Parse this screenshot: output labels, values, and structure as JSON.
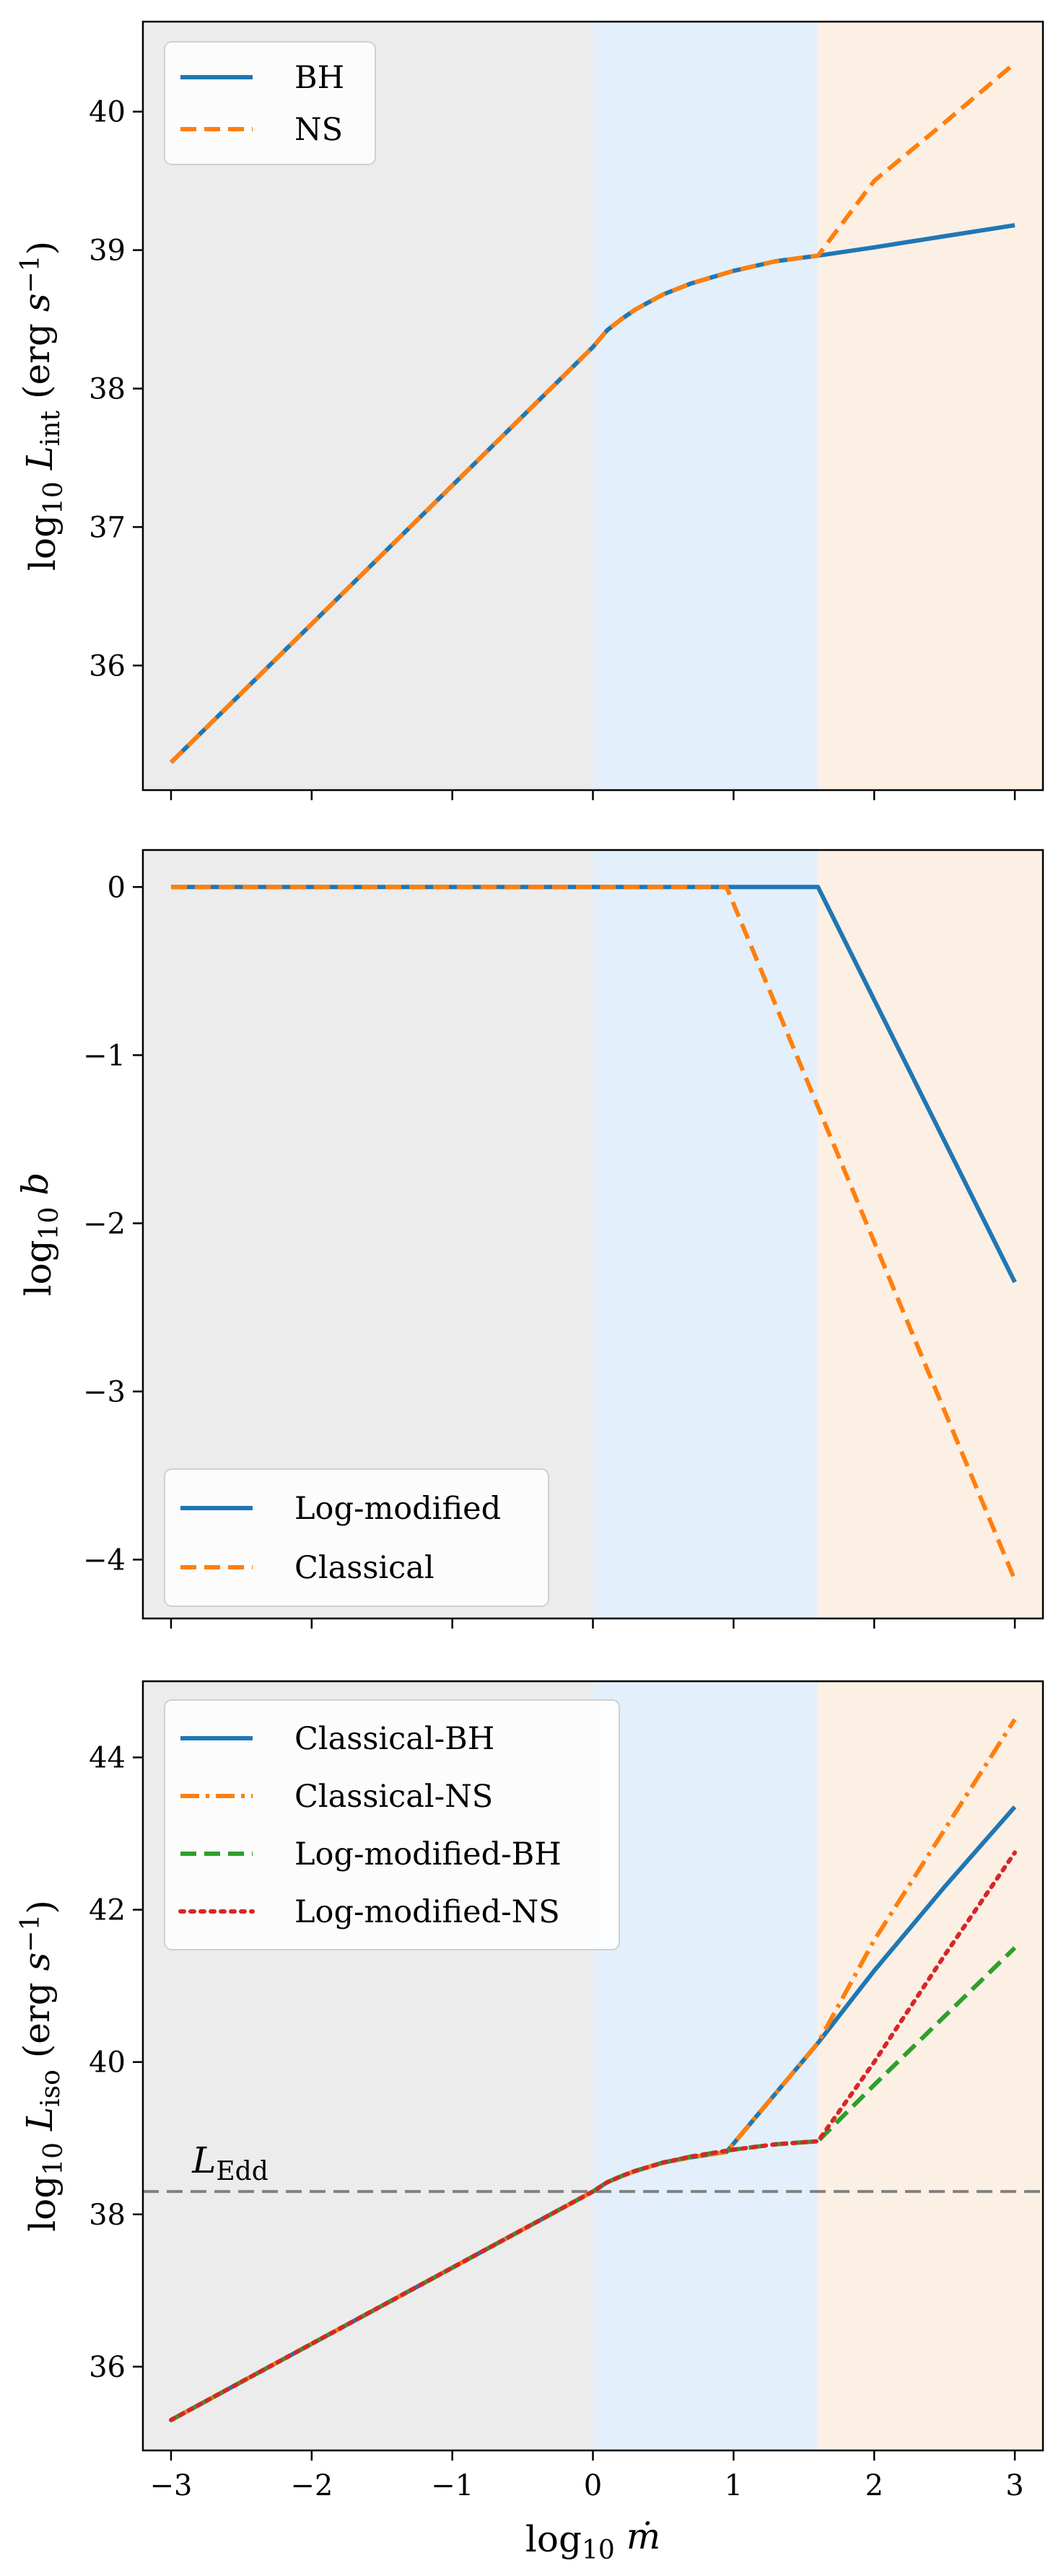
{
  "colors": {
    "blue": "#1f77b4",
    "orange": "#ff7f0e",
    "green": "#2ca02c",
    "red": "#d62728",
    "gray_band": "#ececec",
    "blue_band": "#e3effb",
    "orange_band": "#fcefe4",
    "edd_line": "#808080"
  },
  "chart_data": [
    {
      "type": "line",
      "ylabel": "log₁₀ L_int (erg s⁻¹)",
      "xlim": [
        -3.2,
        3.2
      ],
      "ylim": [
        35.1,
        40.65
      ],
      "yticks": [
        36,
        37,
        38,
        39,
        40
      ],
      "ytick_labels": [
        "36",
        "37",
        "38",
        "39",
        "40"
      ],
      "x_tick_labels_shown": false,
      "shaded_regions": [
        {
          "x": [
            -3.2,
            0.0
          ],
          "color_key": "gray_band"
        },
        {
          "x": [
            0.0,
            1.6
          ],
          "color_key": "blue_band"
        },
        {
          "x": [
            1.6,
            3.2
          ],
          "color_key": "orange_band"
        }
      ],
      "legend": {
        "position": "top-left"
      },
      "series": [
        {
          "name": "BH",
          "style": "solid",
          "color_key": "blue",
          "x": [
            -3,
            -2.5,
            -2,
            -1.5,
            -1,
            -0.5,
            0,
            0.1,
            0.2,
            0.3,
            0.5,
            0.7,
            1.0,
            1.3,
            1.6,
            2.0,
            2.5,
            3.0
          ],
          "y": [
            35.3,
            35.8,
            36.3,
            36.8,
            37.3,
            37.8,
            38.3,
            38.42,
            38.5,
            38.57,
            38.68,
            38.76,
            38.85,
            38.92,
            38.96,
            39.02,
            39.1,
            39.18
          ]
        },
        {
          "name": "NS",
          "style": "dashed",
          "color_key": "orange",
          "x": [
            -3,
            -2.5,
            -2,
            -1.5,
            -1,
            -0.5,
            0,
            0.1,
            0.2,
            0.3,
            0.5,
            0.7,
            1.0,
            1.3,
            1.6,
            2.0,
            2.5,
            3.0
          ],
          "y": [
            35.3,
            35.8,
            36.3,
            36.8,
            37.3,
            37.8,
            38.3,
            38.42,
            38.5,
            38.57,
            38.68,
            38.76,
            38.85,
            38.92,
            38.96,
            39.5,
            39.92,
            40.35
          ]
        }
      ]
    },
    {
      "type": "line",
      "ylabel": "log₁₀ b",
      "xlim": [
        -3.2,
        3.2
      ],
      "ylim": [
        -4.35,
        0.22
      ],
      "yticks": [
        0,
        -1,
        -2,
        -3,
        -4
      ],
      "ytick_labels": [
        "0",
        "−1",
        "−2",
        "−3",
        "−4"
      ],
      "x_tick_labels_shown": false,
      "shaded_regions": [
        {
          "x": [
            -3.2,
            0.0
          ],
          "color_key": "gray_band"
        },
        {
          "x": [
            0.0,
            1.6
          ],
          "color_key": "blue_band"
        },
        {
          "x": [
            1.6,
            3.2
          ],
          "color_key": "orange_band"
        }
      ],
      "legend": {
        "position": "bottom-left"
      },
      "series": [
        {
          "name": "Log-modified",
          "style": "solid",
          "color_key": "blue",
          "x": [
            -3,
            1.6,
            3.0
          ],
          "y": [
            0,
            0,
            -2.35
          ]
        },
        {
          "name": "Classical",
          "style": "dashed",
          "color_key": "orange",
          "x": [
            -3,
            0.95,
            3.0
          ],
          "y": [
            0,
            0,
            -4.12
          ]
        }
      ]
    },
    {
      "type": "line",
      "ylabel": "log₁₀ L_iso (erg s⁻¹)",
      "xlabel": "log₁₀ ṁ",
      "xlim": [
        -3.2,
        3.2
      ],
      "ylim": [
        34.9,
        45.0
      ],
      "yticks": [
        36,
        38,
        40,
        42,
        44
      ],
      "ytick_labels": [
        "36",
        "38",
        "40",
        "42",
        "44"
      ],
      "xticks": [
        -3,
        -2,
        -1,
        0,
        1,
        2,
        3
      ],
      "xtick_labels": [
        "−3",
        "−2",
        "−1",
        "0",
        "1",
        "2",
        "3"
      ],
      "shaded_regions": [
        {
          "x": [
            -3.2,
            0.0
          ],
          "color_key": "gray_band"
        },
        {
          "x": [
            0.0,
            1.6
          ],
          "color_key": "blue_band"
        },
        {
          "x": [
            1.6,
            3.2
          ],
          "color_key": "orange_band"
        }
      ],
      "hline": {
        "y": 38.3,
        "label": "L_Edd",
        "style": "dashed",
        "color_key": "edd_line"
      },
      "legend": {
        "position": "top-left"
      },
      "series": [
        {
          "name": "Classical-BH",
          "style": "solid",
          "color_key": "blue",
          "x": [
            -3,
            -2.5,
            -2,
            -1.5,
            -1,
            -0.5,
            0,
            0.1,
            0.2,
            0.3,
            0.5,
            0.7,
            0.95,
            1.6,
            2.0,
            2.5,
            3.0
          ],
          "y": [
            35.3,
            35.8,
            36.3,
            36.8,
            37.3,
            37.8,
            38.3,
            38.42,
            38.5,
            38.57,
            38.68,
            38.75,
            38.82,
            40.25,
            41.2,
            42.3,
            43.35
          ]
        },
        {
          "name": "Classical-NS",
          "style": "dashdot",
          "color_key": "orange",
          "x": [
            -3,
            -2.5,
            -2,
            -1.5,
            -1,
            -0.5,
            0,
            0.1,
            0.2,
            0.3,
            0.5,
            0.7,
            0.95,
            1.6,
            2.0,
            2.5,
            3.0
          ],
          "y": [
            35.3,
            35.8,
            36.3,
            36.8,
            37.3,
            37.8,
            38.3,
            38.42,
            38.5,
            38.57,
            38.68,
            38.75,
            38.82,
            40.25,
            41.6,
            43.05,
            44.5
          ]
        },
        {
          "name": "Log-modified-BH",
          "style": "dashed",
          "color_key": "green",
          "x": [
            -3,
            -2.5,
            -2,
            -1.5,
            -1,
            -0.5,
            0,
            0.1,
            0.2,
            0.3,
            0.5,
            0.7,
            1.0,
            1.3,
            1.6,
            2.0,
            2.5,
            3.0
          ],
          "y": [
            35.3,
            35.8,
            36.3,
            36.8,
            37.3,
            37.8,
            38.3,
            38.42,
            38.5,
            38.57,
            38.68,
            38.76,
            38.85,
            38.92,
            38.96,
            39.7,
            40.6,
            41.5
          ]
        },
        {
          "name": "Log-modified-NS",
          "style": "dotted",
          "color_key": "red",
          "x": [
            -3,
            -2.5,
            -2,
            -1.5,
            -1,
            -0.5,
            0,
            0.1,
            0.2,
            0.3,
            0.5,
            0.7,
            1.0,
            1.3,
            1.6,
            2.0,
            2.5,
            3.0
          ],
          "y": [
            35.3,
            35.8,
            36.3,
            36.8,
            37.3,
            37.8,
            38.3,
            38.42,
            38.5,
            38.57,
            38.68,
            38.76,
            38.85,
            38.92,
            38.96,
            40.0,
            41.4,
            42.75
          ]
        }
      ]
    }
  ]
}
